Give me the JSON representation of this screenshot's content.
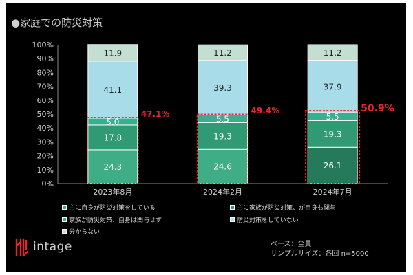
{
  "title": "●家庭での防災対策",
  "logo": {
    "text": "intage"
  },
  "footnotes": {
    "base": "ベース：全員",
    "sample": "サンプルサイズ：各回 n=5000"
  },
  "colors": {
    "self_active": "#3fae86",
    "family_self_involved": "#2f9a73",
    "family_self_not": "#38b08e",
    "none": "#a8dce8",
    "unknown": "#c3dfd1",
    "highlight_label": "#e8242c",
    "axis_text": "#cfcfcf"
  },
  "chart_data": {
    "type": "bar",
    "stacked": true,
    "categories": [
      "2023年8月",
      "2024年2月",
      "2024年7月"
    ],
    "ylim": [
      0,
      100
    ],
    "yticks": [
      "0%",
      "10%",
      "20%",
      "30%",
      "40%",
      "50%",
      "60%",
      "70%",
      "80%",
      "90%",
      "100%"
    ],
    "series": [
      {
        "name": "主に自身が防災対策をしている",
        "values": [
          24.3,
          24.6,
          26.1
        ]
      },
      {
        "name": "主に家族が防災対策、が自身も関与",
        "values": [
          17.8,
          19.3,
          19.3
        ]
      },
      {
        "name": "家族が防災対策、自身は関与せず",
        "values": [
          5.0,
          5.5,
          5.5
        ]
      },
      {
        "name": "防災対策をしていない",
        "values": [
          41.1,
          39.3,
          37.9
        ]
      },
      {
        "name": "分からない",
        "values": [
          11.9,
          11.2,
          11.2
        ]
      }
    ],
    "highlight_totals": [
      "47.1%",
      "49.4%",
      "50.9%"
    ],
    "legend": "bottom",
    "grid": false
  }
}
